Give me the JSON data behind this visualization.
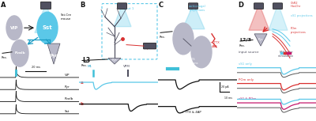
{
  "bg_color": "#ffffff",
  "panel_label_fontsize": 6,
  "blue": "#5BC8E8",
  "dark_blue": "#1A9BC4",
  "red": "#D93030",
  "pink": "#C4186C",
  "gray": "#9090A0",
  "dark_gray": "#505060",
  "light_gray": "#B8B8C8",
  "black": "#101010",
  "cyan": "#40C0D8"
}
